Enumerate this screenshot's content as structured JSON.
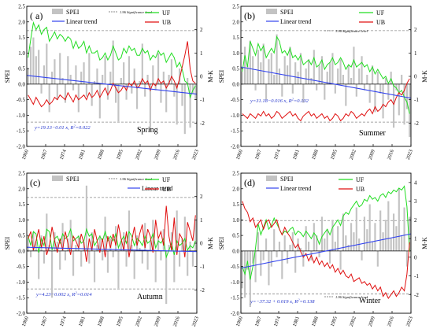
{
  "legend": {
    "spei": "SPEI",
    "linear": "Linear trend",
    "sig": "1.96 Significance level",
    "uf": "UF",
    "ub": "UB"
  },
  "axes": {
    "left_label": "SPEI",
    "right_label": "M-K"
  },
  "chart_data": [
    {
      "type": "bar",
      "panel_label": "( a)",
      "season": "Spring",
      "equation": "y=19.13−0.01 x,  R",
      "r2": "=0.022",
      "years": [
        "1960",
        "1967",
        "1974",
        "1981",
        "1988",
        "1995",
        "2002",
        "2009",
        "2016",
        "2023"
      ],
      "ylim_left": [
        -2.0,
        2.5
      ],
      "yticks_left": [
        "-2.0",
        "-1.5",
        "-1.0",
        "-0.5",
        "0.0",
        "0.5",
        "1.0",
        "1.5",
        "2.0",
        "2.5"
      ],
      "ylim_right": [
        -3,
        3
      ],
      "yticks_right": [
        "-2",
        "-1",
        "0",
        "1",
        "2"
      ],
      "sig_level": 1.96,
      "spei": [
        0.5,
        1.2,
        1.5,
        0.9,
        1.1,
        -0.3,
        0.6,
        1.3,
        -0.9,
        0.4,
        0.8,
        -0.5,
        1.0,
        0.2,
        -0.6,
        0.9,
        0.3,
        -0.2,
        0.6,
        -0.9,
        0.4,
        0.7,
        -0.4,
        1.0,
        -0.7,
        0.1,
        0.5,
        -1.1,
        0.3,
        0.9,
        -0.5,
        0.4,
        1.4,
        -0.6,
        -1.2,
        0.2,
        0.7,
        -0.5,
        0.9,
        -0.3,
        0.5,
        -0.8,
        0.1,
        1.3,
        -0.4,
        0.3,
        -1.5,
        0.6,
        -0.2,
        1.0,
        -0.6,
        0.4,
        -0.9,
        0.3,
        0.8,
        -0.4,
        -1.3,
        0.5,
        -0.7,
        -1.6,
        0.2,
        -1.4,
        -0.3,
        -0.5
      ],
      "uf": [
        0.8,
        1.6,
        2.3,
        2.0,
        2.2,
        1.8,
        2.0,
        2.1,
        1.5,
        1.7,
        1.9,
        1.6,
        1.8,
        1.7,
        1.5,
        1.7,
        1.6,
        1.2,
        1.5,
        1.2,
        1.3,
        1.5,
        1.0,
        1.3,
        1.0,
        1.0,
        1.1,
        0.7,
        0.8,
        1.0,
        0.7,
        0.9,
        1.3,
        1.0,
        0.7,
        0.8,
        1.2,
        1.0,
        1.3,
        1.1,
        1.2,
        0.9,
        0.9,
        1.2,
        1.0,
        1.1,
        0.7,
        0.9,
        0.8,
        1.1,
        0.9,
        1.0,
        0.6,
        0.8,
        1.0,
        0.8,
        0.4,
        0.6,
        0.3,
        -0.2,
        -0.3,
        -0.9,
        -0.6,
        -0.4
      ],
      "ub": [
        -0.8,
        -1.0,
        -1.2,
        -0.9,
        -1.1,
        -1.3,
        -1.2,
        -1.0,
        -1.2,
        -1.1,
        -0.9,
        -1.0,
        -0.8,
        -0.9,
        -1.0,
        -0.7,
        -0.9,
        -1.1,
        -0.8,
        -1.0,
        -0.9,
        -0.8,
        -1.0,
        -0.7,
        -0.9,
        -0.8,
        -0.6,
        -0.9,
        -0.7,
        -0.5,
        -0.8,
        -0.6,
        -0.3,
        -0.5,
        -0.7,
        -0.6,
        -0.4,
        -0.6,
        -0.3,
        -0.4,
        -0.2,
        -0.5,
        -0.4,
        -0.1,
        -0.3,
        -0.2,
        -0.6,
        -0.3,
        -0.4,
        -0.1,
        -0.3,
        -0.2,
        -0.5,
        -0.3,
        0.0,
        -0.2,
        -0.5,
        -0.1,
        0.4,
        0.9,
        1.5,
        0.3,
        -0.2,
        -0.3
      ],
      "trend": [
        0.28,
        -0.32
      ]
    },
    {
      "type": "bar",
      "panel_label": "(b)",
      "season": "Summer",
      "equation": "y=31.18−0.016 x,  R",
      "r2": "=0.102",
      "years": [
        "1960",
        "1967",
        "1974",
        "1981",
        "1988",
        "1995",
        "2002",
        "2009",
        "2016",
        "2023"
      ],
      "ylim_left": [
        -2.0,
        2.5
      ],
      "yticks_left": [
        "-2.0",
        "-1.5",
        "-1.0",
        "-0.5",
        "0.0",
        "0.5",
        "1.0",
        "1.5",
        "2.0",
        "2.5"
      ],
      "ylim_right": [
        -3,
        3
      ],
      "yticks_right": [
        "-2",
        "-1",
        "0",
        "1",
        "2"
      ],
      "sig_level": 1.96,
      "spei": [
        0.4,
        1.2,
        0.6,
        1.4,
        0.9,
        -0.2,
        1.1,
        0.7,
        1.3,
        -0.5,
        0.8,
        1.0,
        0.3,
        1.6,
        0.5,
        -0.4,
        0.9,
        0.6,
        1.2,
        -0.3,
        0.7,
        0.4,
        1.0,
        -0.6,
        0.5,
        0.8,
        0.2,
        1.1,
        -0.2,
        0.6,
        0.9,
        -0.5,
        0.4,
        0.7,
        1.0,
        -0.3,
        0.5,
        0.8,
        0.3,
        -0.7,
        0.6,
        0.2,
        1.2,
        -0.4,
        0.5,
        0.9,
        -0.2,
        0.3,
        -0.6,
        0.6,
        -0.9,
        0.4,
        -0.3,
        -1.1,
        0.2,
        -0.5,
        0.4,
        -1.4,
        -0.2,
        -1.0,
        0.3,
        -1.3,
        -0.8,
        -1.7
      ],
      "uf": [
        0.2,
        0.9,
        0.4,
        1.5,
        1.2,
        0.9,
        1.4,
        1.1,
        1.3,
        0.8,
        1.0,
        1.2,
        1.0,
        1.7,
        1.5,
        1.0,
        1.1,
        0.9,
        1.2,
        0.8,
        0.9,
        0.7,
        0.9,
        0.5,
        0.6,
        0.7,
        0.5,
        0.8,
        0.4,
        0.5,
        0.7,
        0.3,
        0.5,
        0.6,
        0.8,
        0.5,
        0.6,
        0.8,
        0.6,
        0.3,
        0.5,
        0.4,
        0.7,
        0.4,
        0.5,
        0.6,
        0.4,
        0.5,
        0.2,
        0.4,
        0.1,
        0.3,
        0.1,
        -0.1,
        0.0,
        -0.3,
        -0.1,
        -0.4,
        -0.5,
        -0.7,
        -0.6,
        -0.9,
        -1.1,
        -1.6
      ],
      "ub": [
        -1.6,
        -1.7,
        -1.8,
        -1.6,
        -1.7,
        -1.8,
        -1.6,
        -1.7,
        -1.5,
        -1.7,
        -1.6,
        -1.8,
        -1.7,
        -1.5,
        -1.6,
        -1.8,
        -1.7,
        -1.6,
        -1.5,
        -1.7,
        -1.6,
        -1.8,
        -1.9,
        -1.7,
        -1.6,
        -1.5,
        -1.7,
        -1.6,
        -1.8,
        -1.7,
        -1.6,
        -1.8,
        -1.7,
        -1.9,
        -1.8,
        -1.6,
        -1.7,
        -1.9,
        -1.8,
        -1.6,
        -1.7,
        -1.5,
        -1.6,
        -1.8,
        -1.7,
        -1.6,
        -1.7,
        -1.5,
        -1.4,
        -1.6,
        -1.3,
        -1.5,
        -1.4,
        -1.2,
        -1.3,
        -1.1,
        -1.0,
        -1.2,
        -0.9,
        -0.7,
        -0.8,
        -0.6,
        -0.3,
        -0.1
      ],
      "trend": [
        0.55,
        -0.45
      ]
    },
    {
      "type": "bar",
      "panel_label": "(c)",
      "season": "Autumn",
      "equation": "y=4.23−0.002 x,  R",
      "r2": "=0.014",
      "years": [
        "1960",
        "1967",
        "1974",
        "1981",
        "1988",
        "1995",
        "2002",
        "2009",
        "2016",
        "2023"
      ],
      "ylim_left": [
        -2.0,
        2.5
      ],
      "yticks_left": [
        "-2.0",
        "-1.5",
        "-1.0",
        "-0.5",
        "0.0",
        "0.5",
        "1.0",
        "1.5",
        "2.0",
        "2.5"
      ],
      "ylim_right": [
        -3,
        3
      ],
      "yticks_right": [
        "-2",
        "-1",
        "0",
        "1",
        "2"
      ],
      "sig_level": 1.96,
      "spei": [
        0.4,
        -0.2,
        0.6,
        0.3,
        -0.9,
        0.5,
        -0.4,
        1.2,
        0.2,
        -1.5,
        0.6,
        0.3,
        -0.6,
        0.9,
        -0.3,
        0.4,
        1.0,
        -0.8,
        0.2,
        0.5,
        -0.5,
        0.3,
        2.1,
        -0.4,
        0.6,
        -1.0,
        0.2,
        0.5,
        -0.3,
        1.1,
        -0.7,
        0.4,
        -0.2,
        0.8,
        -1.2,
        0.3,
        0.6,
        -0.5,
        1.3,
        0.2,
        -0.9,
        0.5,
        0.1,
        -0.4,
        0.9,
        -0.6,
        0.3,
        1.0,
        -1.0,
        0.4,
        -0.3,
        0.7,
        -1.7,
        0.2,
        0.6,
        -1.0,
        1.3,
        -0.5,
        0.4,
        1.1,
        -0.8,
        0.3,
        -0.5,
        1.0
      ],
      "uf": [
        0.3,
        -0.1,
        0.5,
        0.4,
        -0.4,
        0.2,
        -0.1,
        0.6,
        0.5,
        -0.3,
        0.2,
        0.3,
        0.0,
        0.4,
        0.2,
        0.3,
        0.6,
        0.1,
        0.2,
        0.3,
        0.0,
        0.1,
        0.6,
        0.3,
        0.4,
        -0.1,
        0.1,
        0.3,
        0.1,
        0.5,
        0.1,
        0.3,
        0.1,
        0.4,
        -0.2,
        0.1,
        0.3,
        0.0,
        0.5,
        0.3,
        -0.1,
        0.2,
        0.1,
        -0.1,
        0.3,
        0.0,
        0.1,
        0.4,
        -0.2,
        0.1,
        0.0,
        0.2,
        -0.6,
        -0.3,
        0.0,
        -0.5,
        0.1,
        -0.1,
        0.0,
        0.2,
        -0.3,
        -0.1,
        -0.2,
        0.1
      ],
      "ub": [
        0.2,
        0.5,
        -0.3,
        0.1,
        0.6,
        -0.2,
        0.3,
        -0.5,
        -0.1,
        0.7,
        0.1,
        -0.4,
        0.2,
        -0.3,
        0.5,
        0.0,
        -0.5,
        0.3,
        0.1,
        -0.2,
        0.4,
        0.0,
        -0.8,
        0.2,
        -0.3,
        0.6,
        0.1,
        -0.4,
        0.2,
        -0.6,
        0.3,
        -0.2,
        0.4,
        -0.1,
        0.8,
        0.2,
        -0.3,
        0.5,
        -0.6,
        0.1,
        0.7,
        -0.1,
        0.4,
        0.8,
        -0.2,
        0.6,
        0.3,
        -0.4,
        1.0,
        0.2,
        0.5,
        -0.1,
        1.6,
        0.3,
        -0.3,
        1.1,
        -0.5,
        0.4,
        0.2,
        -0.6,
        0.9,
        0.5,
        0.1,
        1.2
      ],
      "trend": [
        0.12,
        -0.02
      ]
    },
    {
      "type": "bar",
      "panel_label": "(d)",
      "season": "Winter",
      "equation": "y=−37.32 + 0.019 x,  R",
      "r2": "=0.138",
      "years": [
        "1960",
        "1967",
        "1974",
        "1981",
        "1988",
        "1995",
        "2002",
        "2009",
        "2016",
        "2023"
      ],
      "ylim_left": [
        -2.0,
        2.5
      ],
      "yticks_left": [
        "-2.0",
        "-1.5",
        "-1.0",
        "-0.5",
        "0.0",
        "0.5",
        "1.0",
        "1.5",
        "2.0",
        "2.5"
      ],
      "ylim_right": [
        -3,
        4.5
      ],
      "yticks_right": [
        "-2",
        "-1",
        "0",
        "1",
        "2",
        "3",
        "4"
      ],
      "sig_level": 1.96,
      "spei": [
        -1.2,
        -1.5,
        -0.6,
        -1.8,
        -0.4,
        -1.0,
        0.6,
        -0.8,
        -0.3,
        0.4,
        -1.1,
        -0.5,
        0.7,
        -0.2,
        0.3,
        -0.9,
        0.5,
        -0.4,
        0.2,
        0.6,
        -0.7,
        0.4,
        0.1,
        -0.5,
        0.8,
        0.3,
        -0.3,
        0.9,
        0.5,
        -0.2,
        1.1,
        0.4,
        0.7,
        -0.4,
        1.0,
        0.3,
        0.8,
        -0.6,
        1.2,
        0.5,
        0.2,
        0.9,
        0.6,
        1.4,
        0.4,
        -0.3,
        1.1,
        0.7,
        1.5,
        0.3,
        0.9,
        -0.5,
        1.3,
        0.6,
        1.0,
        1.6,
        0.4,
        1.2,
        0.8,
        2.0,
        0.5,
        1.4,
        -0.5,
        1.1
      ],
      "uf": [
        -0.5,
        -0.9,
        -0.2,
        -1.2,
        -0.5,
        0.5,
        1.8,
        1.2,
        1.6,
        2.0,
        1.5,
        1.7,
        2.1,
        1.8,
        1.5,
        1.2,
        1.4,
        1.3,
        1.5,
        1.6,
        1.2,
        1.4,
        1.3,
        1.1,
        1.4,
        1.2,
        1.0,
        1.3,
        1.1,
        0.7,
        1.1,
        1.3,
        1.5,
        1.2,
        1.6,
        1.8,
        2.0,
        1.7,
        2.2,
        2.4,
        2.3,
        2.6,
        2.8,
        3.0,
        2.7,
        2.8,
        3.1,
        3.0,
        3.3,
        3.1,
        3.2,
        3.0,
        3.3,
        3.4,
        3.2,
        3.5,
        3.4,
        3.6,
        3.5,
        3.7,
        3.6,
        3.8,
        2.7,
        0.3
      ],
      "ub": [
        3.0,
        2.6,
        2.4,
        1.9,
        2.1,
        1.6,
        1.8,
        2.0,
        1.5,
        1.9,
        2.0,
        1.6,
        1.8,
        2.0,
        1.5,
        1.2,
        1.6,
        1.3,
        1.1,
        0.8,
        0.5,
        0.7,
        0.3,
        0.0,
        0.2,
        -0.2,
        0.1,
        -0.3,
        0.0,
        -0.4,
        -0.2,
        -0.5,
        -0.3,
        -0.6,
        -0.4,
        -0.8,
        -0.6,
        -0.9,
        -0.7,
        -1.0,
        -1.1,
        -0.9,
        -1.3,
        -1.2,
        -1.1,
        -1.4,
        -1.3,
        -1.5,
        -1.4,
        -1.7,
        -1.5,
        -1.8,
        -1.6,
        -2.1,
        -1.9,
        -2.2,
        -2.0,
        -1.8,
        -2.1,
        -1.9,
        -1.6,
        -1.8,
        -0.9,
        0.8
      ],
      "trend": [
        -0.55,
        0.55
      ]
    }
  ]
}
